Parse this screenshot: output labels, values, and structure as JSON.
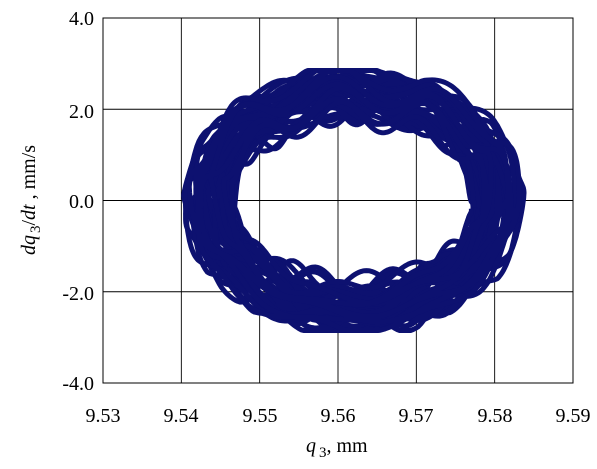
{
  "chart_data": {
    "type": "line",
    "title": "",
    "xlabel": {
      "var": "q",
      "sub": "3",
      "unit": ", mm"
    },
    "ylabel": {
      "prefix": "dq",
      "sub": "3",
      "mid": "/",
      "var2": "dt",
      "unit": " , mm/s"
    },
    "xlim": [
      9.53,
      9.59
    ],
    "ylim": [
      -4.0,
      4.0
    ],
    "x_ticks": [
      "9.53",
      "9.54",
      "9.55",
      "9.56",
      "9.57",
      "9.58",
      "9.59"
    ],
    "y_ticks": [
      "4.0",
      "2.0",
      "0.0",
      "-2.0",
      "-4.0"
    ],
    "grid": true,
    "legend": "none",
    "series": [
      {
        "color": "#0d1170",
        "description_of_shape": "dense quasi-periodic phase-plane orbit forming a thick ring",
        "center_x": 9.562,
        "center_y": 0.0,
        "x_min": 9.5402,
        "x_max": 9.5838,
        "y_min": -2.85,
        "y_max": 2.85,
        "hole_x_half_width": 0.0095,
        "hole_y_half_height": 1.0
      }
    ]
  }
}
